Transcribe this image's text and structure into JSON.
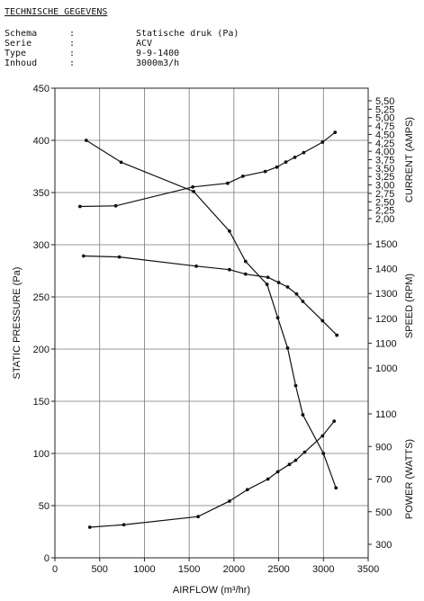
{
  "header": {
    "title": "TECHNISCHE GEGEVENS",
    "specs": [
      {
        "key": "Schema",
        "sep": ":",
        "value": "Statische druk (Pa)"
      },
      {
        "key": "Serie",
        "sep": ":",
        "value": "ACV"
      },
      {
        "key": "Type",
        "sep": ":",
        "value": "9-9-1400"
      },
      {
        "key": "Inhoud",
        "sep": ":",
        "value": "3000m3/h"
      }
    ]
  },
  "chart_data": {
    "type": "line",
    "xlabel": "AIRFLOW (m³/hr)",
    "ylabel": "STATIC PRESSURE (Pa)",
    "xlim": [
      0,
      3500
    ],
    "ylim": [
      0,
      450
    ],
    "grid": true,
    "x_ticks": [
      0,
      500,
      1000,
      1500,
      2000,
      2500,
      3000,
      3500
    ],
    "y_ticks": [
      0,
      50,
      100,
      150,
      200,
      250,
      300,
      350,
      400,
      450
    ],
    "right_axes": [
      {
        "label": "CURRENT (AMPS)",
        "ticks": [
          "2,00",
          "2,25",
          "2,50",
          "2,75",
          "3,00",
          "3,25",
          "3,50",
          "3,75",
          "4,00",
          "4,25",
          "4,50",
          "4,75",
          "5,00",
          "5,25",
          "5,50"
        ],
        "range": [
          2.0,
          5.5
        ]
      },
      {
        "label": "SPEED (RPM)",
        "ticks": [
          "1000",
          "1100",
          "1200",
          "1300",
          "1400",
          "1500"
        ],
        "range": [
          1000,
          1500
        ]
      },
      {
        "label": "POWER (WATTS)",
        "ticks": [
          "300",
          "500",
          "700",
          "900",
          "1100"
        ],
        "range": [
          300,
          1100
        ]
      }
    ],
    "series": [
      {
        "axis": "left",
        "points": [
          [
            350,
            400
          ],
          [
            740,
            379
          ],
          [
            1550,
            351
          ],
          [
            1950,
            313
          ],
          [
            2130,
            284
          ],
          [
            2370,
            262
          ],
          [
            2490,
            230
          ],
          [
            2600,
            201
          ],
          [
            2690,
            165
          ],
          [
            2770,
            137
          ],
          [
            3000,
            100
          ],
          [
            3140,
            67
          ]
        ]
      },
      {
        "axis": "current",
        "points": [
          [
            280,
            2.36
          ],
          [
            680,
            2.38
          ],
          [
            1540,
            2.94
          ],
          [
            1930,
            3.05
          ],
          [
            2100,
            3.26
          ],
          [
            2350,
            3.4
          ],
          [
            2480,
            3.53
          ],
          [
            2580,
            3.68
          ],
          [
            2680,
            3.82
          ],
          [
            2780,
            3.96
          ],
          [
            2990,
            4.27
          ],
          [
            3130,
            4.56
          ]
        ]
      },
      {
        "axis": "speed",
        "points": [
          [
            320,
            1451
          ],
          [
            720,
            1447
          ],
          [
            1580,
            1410
          ],
          [
            1950,
            1396
          ],
          [
            2130,
            1378
          ],
          [
            2380,
            1365
          ],
          [
            2500,
            1344
          ],
          [
            2600,
            1326
          ],
          [
            2700,
            1298
          ],
          [
            2770,
            1268
          ],
          [
            2990,
            1190
          ],
          [
            3150,
            1132
          ]
        ]
      },
      {
        "axis": "power",
        "points": [
          [
            390,
            405
          ],
          [
            770,
            420
          ],
          [
            1600,
            470
          ],
          [
            1950,
            565
          ],
          [
            2150,
            635
          ],
          [
            2380,
            700
          ],
          [
            2490,
            745
          ],
          [
            2620,
            790
          ],
          [
            2690,
            815
          ],
          [
            2790,
            865
          ],
          [
            2990,
            965
          ],
          [
            3120,
            1055
          ]
        ]
      }
    ]
  }
}
